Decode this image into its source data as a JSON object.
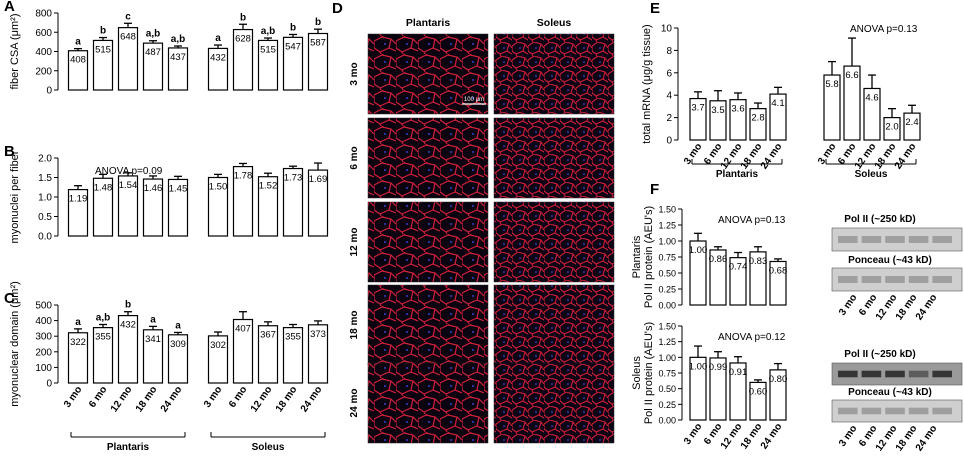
{
  "panels": {
    "A": {
      "label": "A",
      "ylabel": "fiber CSA (μm²)",
      "yticks": [
        "0",
        "200",
        "400",
        "600",
        "800"
      ]
    },
    "B": {
      "label": "B",
      "ylabel": "myonuclei per fiber",
      "yticks": [
        "0.0",
        "0.5",
        "1.0",
        "1.5",
        "2.0"
      ],
      "annotation": "ANOVA p=0.09"
    },
    "C": {
      "label": "C",
      "ylabel": "myonuclear domain (μm²)",
      "yticks": [
        "0",
        "100",
        "200",
        "300",
        "400",
        "500"
      ]
    },
    "D": {
      "label": "D",
      "col_labels": [
        "Plantaris",
        "Soleus"
      ],
      "row_labels": [
        "3 mo",
        "6 mo",
        "12 mo",
        "18 mo",
        "24 mo"
      ],
      "scale_bar": "100 μm"
    },
    "E": {
      "label": "E",
      "ylabel": "total mRNA (μg/g tissue)",
      "yticks": [
        "0",
        "2",
        "4",
        "6",
        "8",
        "10"
      ],
      "annotation": "ANOVA p=0.13"
    },
    "F": {
      "label": "F",
      "ylabel_top_1": "Plantaris",
      "ylabel_top_2": "Pol II protein (AEU's)",
      "ylabel_bot_1": "Soleus",
      "ylabel_bot_2": "Pol II protein (AEU's)",
      "yticks": [
        "0.00",
        "0.25",
        "0.50",
        "0.75",
        "1.00",
        "1.25",
        "1.50"
      ],
      "annotation_top": "ANOVA p=0.13",
      "annotation_bot": "ANOVA p=0.12",
      "blot_top_1": "Pol II (~250 kD)",
      "blot_top_2": "Ponceau (~43 kD)",
      "blot_bot_1": "Pol II (~250 kD)",
      "blot_bot_2": "Ponceau (~43 kD)"
    }
  },
  "groups": {
    "plantaris": "Plantaris",
    "soleus": "Soleus"
  },
  "ages": [
    "3 mo",
    "6 mo",
    "12 mo",
    "18 mo",
    "24 mo"
  ],
  "chart_data": [
    {
      "type": "bar",
      "id": "A",
      "ylabel": "fiber CSA (μm²)",
      "ylim": [
        0,
        800
      ],
      "categories": [
        "3 mo",
        "6 mo",
        "12 mo",
        "18 mo",
        "24 mo"
      ],
      "series": [
        {
          "name": "Plantaris",
          "values": [
            408,
            515,
            648,
            487,
            437
          ],
          "errors": [
            22,
            30,
            45,
            25,
            20
          ],
          "letters": [
            "a",
            "b",
            "c",
            "a,b",
            "a,b"
          ]
        },
        {
          "name": "Soleus",
          "values": [
            432,
            628,
            515,
            547,
            587
          ],
          "errors": [
            35,
            55,
            25,
            30,
            45
          ],
          "letters": [
            "a",
            "b",
            "a,b",
            "b",
            "b"
          ]
        }
      ]
    },
    {
      "type": "bar",
      "id": "B",
      "ylabel": "myonuclei per fiber",
      "ylim": [
        0,
        2
      ],
      "categories": [
        "3 mo",
        "6 mo",
        "12 mo",
        "18 mo",
        "24 mo"
      ],
      "series": [
        {
          "name": "Plantaris",
          "values": [
            1.19,
            1.48,
            1.54,
            1.46,
            1.45
          ],
          "errors": [
            0.1,
            0.1,
            0.08,
            0.08,
            0.08
          ]
        },
        {
          "name": "Soleus",
          "values": [
            1.5,
            1.78,
            1.52,
            1.73,
            1.69
          ],
          "errors": [
            0.08,
            0.08,
            0.09,
            0.06,
            0.18
          ]
        }
      ]
    },
    {
      "type": "bar",
      "id": "C",
      "ylabel": "myonuclear domain (μm²)",
      "ylim": [
        0,
        500
      ],
      "categories": [
        "3 mo",
        "6 mo",
        "12 mo",
        "18 mo",
        "24 mo"
      ],
      "series": [
        {
          "name": "Plantaris",
          "values": [
            322,
            355,
            432,
            341,
            309
          ],
          "errors": [
            25,
            20,
            25,
            22,
            15
          ],
          "letters": [
            "a",
            "a,b",
            "b",
            "a",
            "a"
          ]
        },
        {
          "name": "Soleus",
          "values": [
            302,
            407,
            367,
            355,
            373
          ],
          "errors": [
            25,
            50,
            25,
            20,
            25
          ]
        }
      ]
    },
    {
      "type": "bar",
      "id": "E",
      "ylabel": "total mRNA (μg/g tissue)",
      "ylim": [
        0,
        10
      ],
      "categories": [
        "3 mo",
        "6 mo",
        "12 mo",
        "18 mo",
        "24 mo"
      ],
      "series": [
        {
          "name": "Plantaris",
          "values": [
            3.7,
            3.5,
            3.6,
            2.8,
            4.1
          ],
          "errors": [
            0.6,
            0.9,
            0.6,
            0.5,
            0.6
          ]
        },
        {
          "name": "Soleus",
          "values": [
            5.8,
            6.6,
            4.6,
            2.0,
            2.4
          ],
          "errors": [
            1.2,
            2.5,
            1.2,
            0.8,
            0.7
          ]
        }
      ]
    },
    {
      "type": "bar",
      "id": "F_plantaris",
      "ylabel": "Pol II protein (AEU's)",
      "ylim": [
        0,
        1.5
      ],
      "categories": [
        "3 mo",
        "6 mo",
        "12 mo",
        "18 mo",
        "24 mo"
      ],
      "series": [
        {
          "name": "Plantaris",
          "values": [
            1.0,
            0.86,
            0.74,
            0.83,
            0.68
          ],
          "errors": [
            0.12,
            0.05,
            0.08,
            0.08,
            0.04
          ]
        }
      ]
    },
    {
      "type": "bar",
      "id": "F_soleus",
      "ylabel": "Pol II protein (AEU's)",
      "ylim": [
        0,
        1.5
      ],
      "categories": [
        "3 mo",
        "6 mo",
        "12 mo",
        "18 mo",
        "24 mo"
      ],
      "series": [
        {
          "name": "Soleus",
          "values": [
            1.0,
            0.99,
            0.91,
            0.6,
            0.8
          ],
          "errors": [
            0.18,
            0.1,
            0.1,
            0.04,
            0.1
          ]
        }
      ]
    }
  ]
}
